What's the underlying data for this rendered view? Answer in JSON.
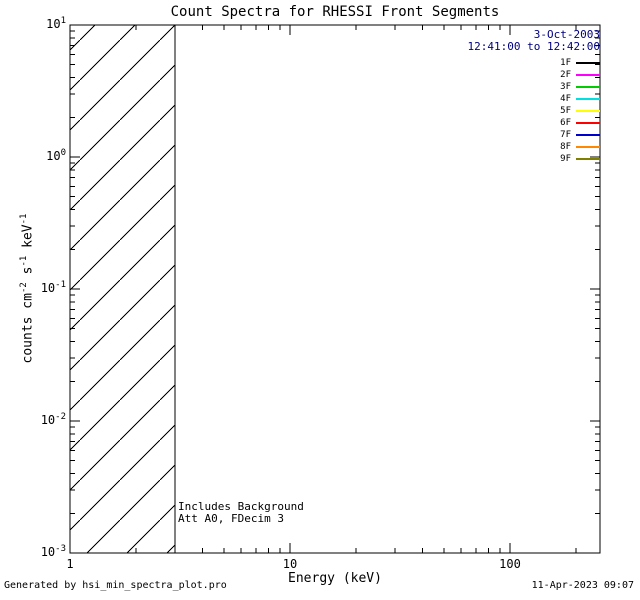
{
  "title": "Count Spectra for RHESSI Front Segments",
  "colors": {
    "axis": "#000000",
    "background": "#ffffff",
    "meta_text": "#000080"
  },
  "observation": {
    "date": "3-Oct-2003",
    "time_range": "12:41:00 to 12:42:00"
  },
  "annotations": {
    "background_note": "Includes Background",
    "attenuator_note": "Att A0, FDecim 3"
  },
  "footer": {
    "generator": "Generated by hsi_min_spectra_plot.pro",
    "timestamp": "11-Apr-2023 09:07"
  },
  "chart_data": {
    "type": "line",
    "title": "Count Spectra for RHESSI Front Segments",
    "xlabel": "Energy (keV)",
    "ylabel": "counts cm^-2 s^-1 keV^-1",
    "ylabel_parts": [
      {
        "text": "counts cm",
        "sup": "-2"
      },
      {
        "text": " s",
        "sup": "-1"
      },
      {
        "text": " keV",
        "sup": "-1"
      }
    ],
    "x_scale": "log",
    "y_scale": "log",
    "xlim": [
      1,
      250
    ],
    "ylim": [
      0.001,
      10
    ],
    "x_tick_labels": [
      "1",
      "10",
      "100"
    ],
    "x_tick_values": [
      1,
      10,
      100
    ],
    "y_ticks": [
      {
        "base": "10",
        "exp": "1",
        "value": 10
      },
      {
        "base": "10",
        "exp": "0",
        "value": 1
      },
      {
        "base": "10",
        "exp": "-1",
        "value": 0.1
      },
      {
        "base": "10",
        "exp": "-2",
        "value": 0.01
      },
      {
        "base": "10",
        "exp": "-3",
        "value": 0.001
      }
    ],
    "grid": false,
    "series": [],
    "hatched_region": {
      "x_range_kev": [
        1,
        3
      ],
      "y_range": [
        0.001,
        10
      ]
    },
    "legend": {
      "position": "top-right",
      "entries": [
        {
          "label": "1F",
          "color": "#000000"
        },
        {
          "label": "2F",
          "color": "#ff00ff"
        },
        {
          "label": "3F",
          "color": "#00cc00"
        },
        {
          "label": "4F",
          "color": "#00e0e0"
        },
        {
          "label": "5F",
          "color": "#ffff00"
        },
        {
          "label": "6F",
          "color": "#ff0000"
        },
        {
          "label": "7F",
          "color": "#0000cc"
        },
        {
          "label": "8F",
          "color": "#ff8800"
        },
        {
          "label": "9F",
          "color": "#808000"
        }
      ]
    }
  }
}
